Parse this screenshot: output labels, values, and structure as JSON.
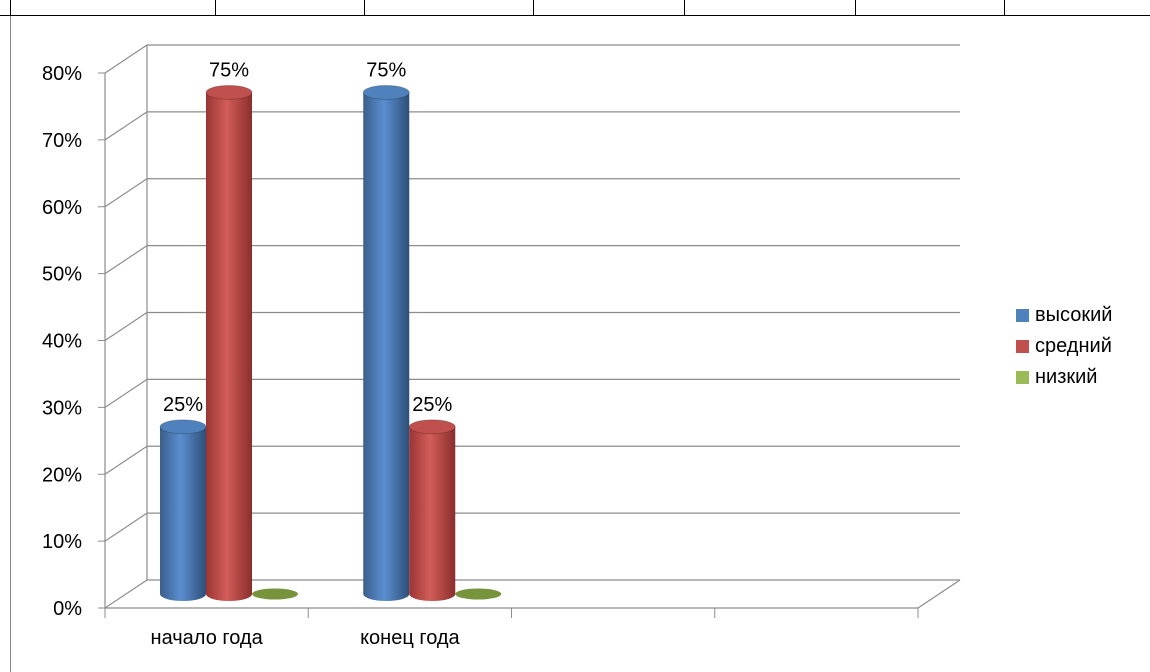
{
  "chart_data": {
    "type": "bar",
    "categories": [
      "начало года",
      "конец года",
      "",
      ""
    ],
    "series": [
      {
        "name": "высокий",
        "values": [
          25,
          75,
          0,
          0
        ],
        "color": "#4F81BD"
      },
      {
        "name": "средний",
        "values": [
          75,
          25,
          0,
          0
        ],
        "color": "#C0504D"
      },
      {
        "name": "низкий",
        "values": [
          0,
          0,
          0,
          0
        ],
        "color": "#9BBB59"
      }
    ],
    "data_labels": [
      {
        "series": 0,
        "category": 0,
        "text": "25%"
      },
      {
        "series": 1,
        "category": 0,
        "text": "75%"
      },
      {
        "series": 0,
        "category": 1,
        "text": "75%"
      },
      {
        "series": 1,
        "category": 1,
        "text": "25%"
      }
    ],
    "y_ticks": [
      "0%",
      "10%",
      "20%",
      "30%",
      "40%",
      "50%",
      "60%",
      "70%",
      "80%"
    ],
    "ylim": [
      0,
      80
    ],
    "grid": true,
    "legend_position": "right",
    "three_d": true
  }
}
